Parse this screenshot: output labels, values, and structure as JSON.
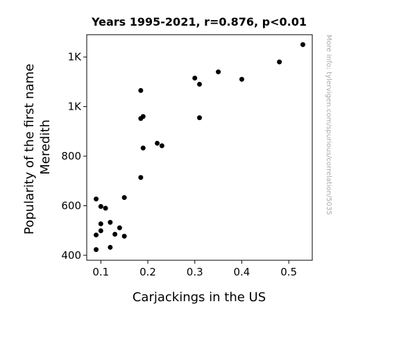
{
  "chart_data": {
    "type": "scatter",
    "title": "Years 1995-2021, r=0.876, p<0.01",
    "xlabel": "Carjackings in the US",
    "ylabel_lines": [
      "Popularity of the first name",
      "Meredith"
    ],
    "watermark": "More info: tylervigen.com/spurious/correlation/5035",
    "xlim": [
      0.07,
      0.55
    ],
    "ylim": [
      380,
      1290
    ],
    "x_ticks": [
      {
        "value": 0.1,
        "label": "0.1"
      },
      {
        "value": 0.2,
        "label": "0.2"
      },
      {
        "value": 0.3,
        "label": "0.3"
      },
      {
        "value": 0.4,
        "label": "0.4"
      },
      {
        "value": 0.5,
        "label": "0.5"
      }
    ],
    "y_ticks": [
      {
        "value": 400,
        "label": "400"
      },
      {
        "value": 600,
        "label": "600"
      },
      {
        "value": 800,
        "label": "800"
      },
      {
        "value": 1000,
        "label": "1K"
      },
      {
        "value": 1200,
        "label": "1K"
      }
    ],
    "point_color": "#000000",
    "grid": false,
    "points": [
      {
        "x": 0.53,
        "y": 1250
      },
      {
        "x": 0.48,
        "y": 1180
      },
      {
        "x": 0.4,
        "y": 1110
      },
      {
        "x": 0.35,
        "y": 1140
      },
      {
        "x": 0.3,
        "y": 1115
      },
      {
        "x": 0.31,
        "y": 1090
      },
      {
        "x": 0.185,
        "y": 1065
      },
      {
        "x": 0.31,
        "y": 955
      },
      {
        "x": 0.19,
        "y": 960
      },
      {
        "x": 0.185,
        "y": 952
      },
      {
        "x": 0.22,
        "y": 852
      },
      {
        "x": 0.23,
        "y": 842
      },
      {
        "x": 0.19,
        "y": 833
      },
      {
        "x": 0.185,
        "y": 714
      },
      {
        "x": 0.15,
        "y": 633
      },
      {
        "x": 0.09,
        "y": 627
      },
      {
        "x": 0.1,
        "y": 597
      },
      {
        "x": 0.11,
        "y": 590
      },
      {
        "x": 0.12,
        "y": 533
      },
      {
        "x": 0.1,
        "y": 527
      },
      {
        "x": 0.14,
        "y": 511
      },
      {
        "x": 0.1,
        "y": 499
      },
      {
        "x": 0.13,
        "y": 485
      },
      {
        "x": 0.09,
        "y": 482
      },
      {
        "x": 0.15,
        "y": 477
      },
      {
        "x": 0.12,
        "y": 432
      },
      {
        "x": 0.09,
        "y": 423
      }
    ]
  }
}
